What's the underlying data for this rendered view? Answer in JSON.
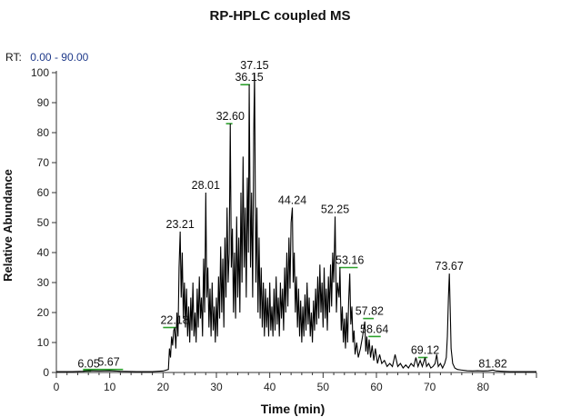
{
  "title": "RP-HPLC coupled MS",
  "rt_range": {
    "label": "RT:",
    "value": "0.00 - 90.00"
  },
  "colors": {
    "trace": "#000000",
    "rt_value": "#1f3a8a",
    "marker": "#2ca02c",
    "axis": "#333333"
  },
  "chart_data": {
    "type": "line",
    "title": "RP-HPLC coupled MS",
    "xlabel": "Time (min)",
    "ylabel": "Relative Abundance",
    "xlim": [
      0,
      90
    ],
    "ylim": [
      0,
      100
    ],
    "xticks": [
      0,
      10,
      20,
      30,
      40,
      50,
      60,
      70,
      80
    ],
    "yticks": [
      0,
      10,
      20,
      30,
      40,
      50,
      60,
      70,
      80,
      90,
      100
    ],
    "grid": false,
    "legend": "none",
    "peaks": [
      {
        "label": "6.05",
        "x": 6.05,
        "y": 0.5,
        "marker": true,
        "marker_from": 5.0,
        "marker_to": 6.5
      },
      {
        "label": "5.67",
        "x": 9.8,
        "y": 1,
        "marker": true,
        "marker_from": 5.0,
        "marker_to": 12.5
      },
      {
        "label": "22.18",
        "x": 22.18,
        "y": 15,
        "marker": true,
        "marker_from": 20.0,
        "marker_to": 22.5
      },
      {
        "label": "23.21",
        "x": 23.21,
        "y": 47,
        "marker": false
      },
      {
        "label": "28.01",
        "x": 28.01,
        "y": 60,
        "marker": false
      },
      {
        "label": "32.60",
        "x": 32.6,
        "y": 83,
        "marker": true,
        "marker_from": 31.8,
        "marker_to": 33.0
      },
      {
        "label": "36.15",
        "x": 36.15,
        "y": 96,
        "marker": true,
        "marker_from": 34.5,
        "marker_to": 36.3
      },
      {
        "label": "37.15",
        "x": 37.15,
        "y": 100,
        "marker": false
      },
      {
        "label": "44.24",
        "x": 44.24,
        "y": 55,
        "marker": false
      },
      {
        "label": "52.25",
        "x": 52.25,
        "y": 52,
        "marker": false
      },
      {
        "label": "53.16",
        "x": 55.0,
        "y": 35,
        "marker": true,
        "marker_from": 53.0,
        "marker_to": 56.5
      },
      {
        "label": "57.82",
        "x": 58.7,
        "y": 18,
        "marker": true,
        "marker_from": 57.5,
        "marker_to": 59.5
      },
      {
        "label": "58.64",
        "x": 59.6,
        "y": 12,
        "marker": true,
        "marker_from": 58.5,
        "marker_to": 60.8
      },
      {
        "label": "69.12",
        "x": 69.12,
        "y": 5,
        "marker": true,
        "marker_from": 67.8,
        "marker_to": 69.6
      },
      {
        "label": "73.67",
        "x": 73.67,
        "y": 33,
        "marker": false
      },
      {
        "label": "81.82",
        "x": 81.82,
        "y": 0.5,
        "marker": false
      }
    ],
    "series": [
      {
        "values": [
          [
            0,
            0.3
          ],
          [
            3,
            0.3
          ],
          [
            5,
            0.4
          ],
          [
            6.05,
            0.6
          ],
          [
            8,
            0.5
          ],
          [
            10,
            0.6
          ],
          [
            12,
            0.4
          ],
          [
            15,
            0.3
          ],
          [
            18,
            0.3
          ],
          [
            20,
            0.5
          ],
          [
            21.0,
            1
          ],
          [
            21.2,
            8
          ],
          [
            21.4,
            5
          ],
          [
            21.6,
            12
          ],
          [
            21.8,
            9
          ],
          [
            22.0,
            14
          ],
          [
            22.18,
            15
          ],
          [
            22.4,
            8
          ],
          [
            22.6,
            20
          ],
          [
            22.8,
            12
          ],
          [
            23.0,
            35
          ],
          [
            23.21,
            47
          ],
          [
            23.4,
            25
          ],
          [
            23.6,
            40
          ],
          [
            23.8,
            18
          ],
          [
            24.0,
            30
          ],
          [
            24.2,
            15
          ],
          [
            24.4,
            28
          ],
          [
            24.6,
            12
          ],
          [
            24.8,
            22
          ],
          [
            25.0,
            10
          ],
          [
            25.2,
            25
          ],
          [
            25.4,
            14
          ],
          [
            25.6,
            30
          ],
          [
            25.8,
            12
          ],
          [
            26.0,
            20
          ],
          [
            26.2,
            10
          ],
          [
            26.4,
            28
          ],
          [
            26.6,
            15
          ],
          [
            26.8,
            32
          ],
          [
            27.0,
            18
          ],
          [
            27.2,
            25
          ],
          [
            27.4,
            12
          ],
          [
            27.6,
            38
          ],
          [
            27.8,
            20
          ],
          [
            28.01,
            60
          ],
          [
            28.2,
            25
          ],
          [
            28.4,
            35
          ],
          [
            28.6,
            15
          ],
          [
            28.8,
            28
          ],
          [
            29.0,
            12
          ],
          [
            29.2,
            30
          ],
          [
            29.4,
            14
          ],
          [
            29.6,
            22
          ],
          [
            29.8,
            10
          ],
          [
            30.0,
            25
          ],
          [
            30.2,
            12
          ],
          [
            30.4,
            32
          ],
          [
            30.6,
            18
          ],
          [
            30.8,
            42
          ],
          [
            31.0,
            20
          ],
          [
            31.2,
            38
          ],
          [
            31.4,
            15
          ],
          [
            31.6,
            45
          ],
          [
            31.8,
            25
          ],
          [
            32.0,
            55
          ],
          [
            32.2,
            30
          ],
          [
            32.4,
            40
          ],
          [
            32.6,
            83
          ],
          [
            32.8,
            35
          ],
          [
            33.0,
            48
          ],
          [
            33.2,
            20
          ],
          [
            33.4,
            40
          ],
          [
            33.6,
            18
          ],
          [
            33.8,
            52
          ],
          [
            34.0,
            25
          ],
          [
            34.2,
            45
          ],
          [
            34.4,
            20
          ],
          [
            34.6,
            60
          ],
          [
            34.8,
            30
          ],
          [
            35.0,
            72
          ],
          [
            35.2,
            35
          ],
          [
            35.4,
            55
          ],
          [
            35.6,
            25
          ],
          [
            35.8,
            65
          ],
          [
            36.0,
            40
          ],
          [
            36.15,
            96
          ],
          [
            36.4,
            35
          ],
          [
            36.6,
            60
          ],
          [
            36.8,
            25
          ],
          [
            37.0,
            80
          ],
          [
            37.15,
            100
          ],
          [
            37.4,
            30
          ],
          [
            37.6,
            55
          ],
          [
            37.8,
            20
          ],
          [
            38.0,
            45
          ],
          [
            38.2,
            18
          ],
          [
            38.4,
            35
          ],
          [
            38.6,
            15
          ],
          [
            38.8,
            30
          ],
          [
            39.0,
            12
          ],
          [
            39.2,
            28
          ],
          [
            39.4,
            15
          ],
          [
            39.6,
            25
          ],
          [
            39.8,
            12
          ],
          [
            40.0,
            30
          ],
          [
            40.2,
            14
          ],
          [
            40.4,
            22
          ],
          [
            40.6,
            12
          ],
          [
            40.8,
            28
          ],
          [
            41.0,
            14
          ],
          [
            41.2,
            32
          ],
          [
            41.4,
            16
          ],
          [
            41.6,
            25
          ],
          [
            41.8,
            12
          ],
          [
            42.0,
            30
          ],
          [
            42.2,
            18
          ],
          [
            42.4,
            28
          ],
          [
            42.6,
            14
          ],
          [
            42.8,
            35
          ],
          [
            43.0,
            20
          ],
          [
            43.2,
            40
          ],
          [
            43.4,
            22
          ],
          [
            43.6,
            45
          ],
          [
            43.8,
            28
          ],
          [
            44.0,
            50
          ],
          [
            44.24,
            55
          ],
          [
            44.4,
            30
          ],
          [
            44.6,
            40
          ],
          [
            44.8,
            20
          ],
          [
            45.0,
            32
          ],
          [
            45.2,
            15
          ],
          [
            45.4,
            28
          ],
          [
            45.6,
            12
          ],
          [
            45.8,
            24
          ],
          [
            46.0,
            10
          ],
          [
            46.2,
            22
          ],
          [
            46.4,
            12
          ],
          [
            46.6,
            26
          ],
          [
            46.8,
            14
          ],
          [
            47.0,
            30
          ],
          [
            47.2,
            16
          ],
          [
            47.4,
            25
          ],
          [
            47.6,
            12
          ],
          [
            47.8,
            20
          ],
          [
            48.0,
            10
          ],
          [
            48.2,
            24
          ],
          [
            48.4,
            14
          ],
          [
            48.6,
            28
          ],
          [
            48.8,
            16
          ],
          [
            49.0,
            32
          ],
          [
            49.2,
            18
          ],
          [
            49.4,
            36
          ],
          [
            49.6,
            20
          ],
          [
            49.8,
            30
          ],
          [
            50.0,
            15
          ],
          [
            50.2,
            35
          ],
          [
            50.4,
            18
          ],
          [
            50.6,
            28
          ],
          [
            50.8,
            14
          ],
          [
            51.0,
            32
          ],
          [
            51.2,
            20
          ],
          [
            51.4,
            36
          ],
          [
            51.6,
            22
          ],
          [
            51.8,
            40
          ],
          [
            52.0,
            30
          ],
          [
            52.25,
            52
          ],
          [
            52.5,
            20
          ],
          [
            52.7,
            30
          ],
          [
            53.0,
            25
          ],
          [
            53.16,
            35
          ],
          [
            53.4,
            14
          ],
          [
            53.6,
            22
          ],
          [
            53.8,
            10
          ],
          [
            54.0,
            18
          ],
          [
            54.2,
            8
          ],
          [
            54.4,
            20
          ],
          [
            54.6,
            10
          ],
          [
            54.8,
            24
          ],
          [
            55.0,
            33
          ],
          [
            55.2,
            16
          ],
          [
            55.4,
            22
          ],
          [
            55.6,
            10
          ],
          [
            55.8,
            14
          ],
          [
            56.0,
            6
          ],
          [
            56.3,
            10
          ],
          [
            56.6,
            5
          ],
          [
            57.0,
            8
          ],
          [
            57.4,
            12
          ],
          [
            57.82,
            17
          ],
          [
            58.0,
            7
          ],
          [
            58.2,
            12
          ],
          [
            58.4,
            6
          ],
          [
            58.64,
            11
          ],
          [
            58.9,
            5
          ],
          [
            59.2,
            9
          ],
          [
            59.5,
            4
          ],
          [
            59.8,
            8
          ],
          [
            60.2,
            3
          ],
          [
            60.6,
            6
          ],
          [
            61.0,
            3
          ],
          [
            61.5,
            4
          ],
          [
            62.0,
            2
          ],
          [
            62.5,
            3
          ],
          [
            63.0,
            2
          ],
          [
            63.5,
            6
          ],
          [
            64.0,
            2
          ],
          [
            64.5,
            3
          ],
          [
            65.0,
            1.5
          ],
          [
            65.5,
            2.5
          ],
          [
            66.0,
            1.5
          ],
          [
            66.5,
            3
          ],
          [
            67.0,
            2
          ],
          [
            67.4,
            5
          ],
          [
            67.8,
            2
          ],
          [
            68.2,
            4
          ],
          [
            68.6,
            2
          ],
          [
            69.12,
            5
          ],
          [
            69.4,
            2
          ],
          [
            69.8,
            3
          ],
          [
            70.2,
            1.5
          ],
          [
            70.6,
            2
          ],
          [
            71.0,
            3
          ],
          [
            71.3,
            6
          ],
          [
            71.6,
            2
          ],
          [
            72.0,
            3
          ],
          [
            72.4,
            1.5
          ],
          [
            72.8,
            3
          ],
          [
            73.1,
            5
          ],
          [
            73.3,
            12
          ],
          [
            73.5,
            25
          ],
          [
            73.67,
            33
          ],
          [
            73.85,
            20
          ],
          [
            74.0,
            8
          ],
          [
            74.3,
            3
          ],
          [
            74.7,
            1.5
          ],
          [
            75.2,
            1
          ],
          [
            76.0,
            0.8
          ],
          [
            77.0,
            0.6
          ],
          [
            78.0,
            0.5
          ],
          [
            79.0,
            0.6
          ],
          [
            80.0,
            0.5
          ],
          [
            81.0,
            0.6
          ],
          [
            81.82,
            0.8
          ],
          [
            82.5,
            0.5
          ],
          [
            83.5,
            0.4
          ],
          [
            85.0,
            0.3
          ],
          [
            87.0,
            0.3
          ],
          [
            90.0,
            0.3
          ]
        ]
      }
    ]
  }
}
